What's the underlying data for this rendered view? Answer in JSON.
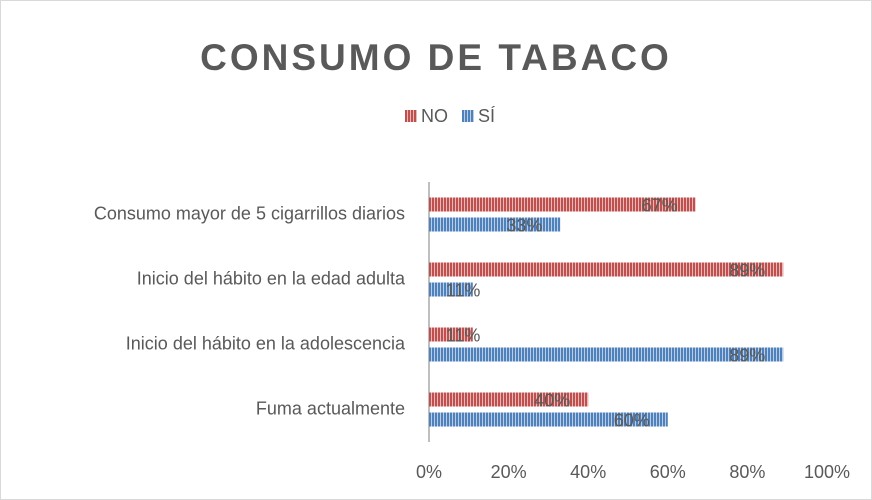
{
  "chart_data": {
    "type": "hbar",
    "title": "CONSUMO DE TABACO",
    "categories": [
      "Consumo mayor de 5 cigarrillos diarios",
      "Inicio del hábito en la edad adulta",
      "Inicio del hábito en la adolescencia",
      "Fuma actualmente"
    ],
    "series": [
      {
        "name": "NO",
        "color": "#c0504d",
        "values": [
          67,
          89,
          11,
          40
        ],
        "value_labels": [
          "67%",
          "89%",
          "11%",
          "40%"
        ]
      },
      {
        "name": "SÍ",
        "color": "#4f81bd",
        "values": [
          33,
          11,
          89,
          60
        ],
        "value_labels": [
          "33%",
          "11%",
          "89%",
          "60%"
        ]
      }
    ],
    "xlim": [
      0,
      100
    ],
    "xticks": [
      {
        "value": 0,
        "label": "0%"
      },
      {
        "value": 20,
        "label": "20%"
      },
      {
        "value": 40,
        "label": "40%"
      },
      {
        "value": 60,
        "label": "60%"
      },
      {
        "value": 80,
        "label": "80%"
      },
      {
        "value": 100,
        "label": "100%"
      }
    ],
    "legend": "top"
  }
}
